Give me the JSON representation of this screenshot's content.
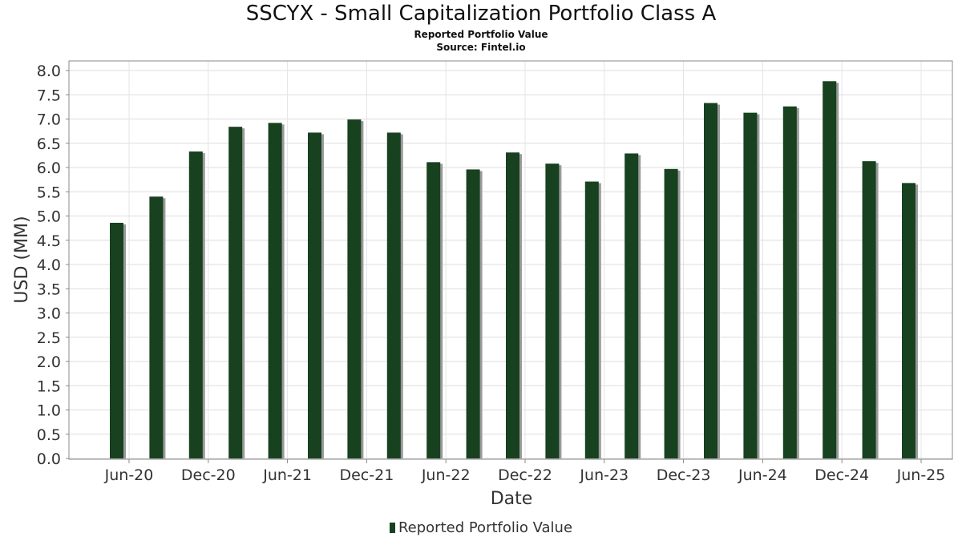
{
  "chart_data": {
    "type": "bar",
    "title": "SSCYX - Small Capitalization Portfolio Class A",
    "subtitles": [
      "Reported Portfolio Value",
      "Source: Fintel.io"
    ],
    "xlabel": "Date",
    "ylabel": "USD (MM)",
    "ylim": [
      0,
      8.0
    ],
    "yticks": [
      "0.0",
      "0.5",
      "1.0",
      "1.5",
      "2.0",
      "2.5",
      "3.0",
      "3.5",
      "4.0",
      "4.5",
      "5.0",
      "5.5",
      "6.0",
      "6.5",
      "7.0",
      "7.5",
      "8.0"
    ],
    "xtick_labels": [
      "Jun-20",
      "Dec-20",
      "Jun-21",
      "Dec-21",
      "Jun-22",
      "Dec-22",
      "Jun-23",
      "Dec-23",
      "Jun-24",
      "Dec-24",
      "Jun-25"
    ],
    "grid": true,
    "legend_position": "bottom",
    "series": [
      {
        "name": "Reported Portfolio Value",
        "color": "#17411f",
        "values": [
          4.86,
          5.4,
          6.33,
          6.84,
          6.92,
          6.72,
          6.99,
          6.72,
          6.11,
          5.96,
          6.31,
          6.08,
          5.71,
          6.29,
          5.97,
          7.33,
          7.13,
          7.26,
          7.78,
          6.13,
          5.68
        ]
      }
    ]
  }
}
